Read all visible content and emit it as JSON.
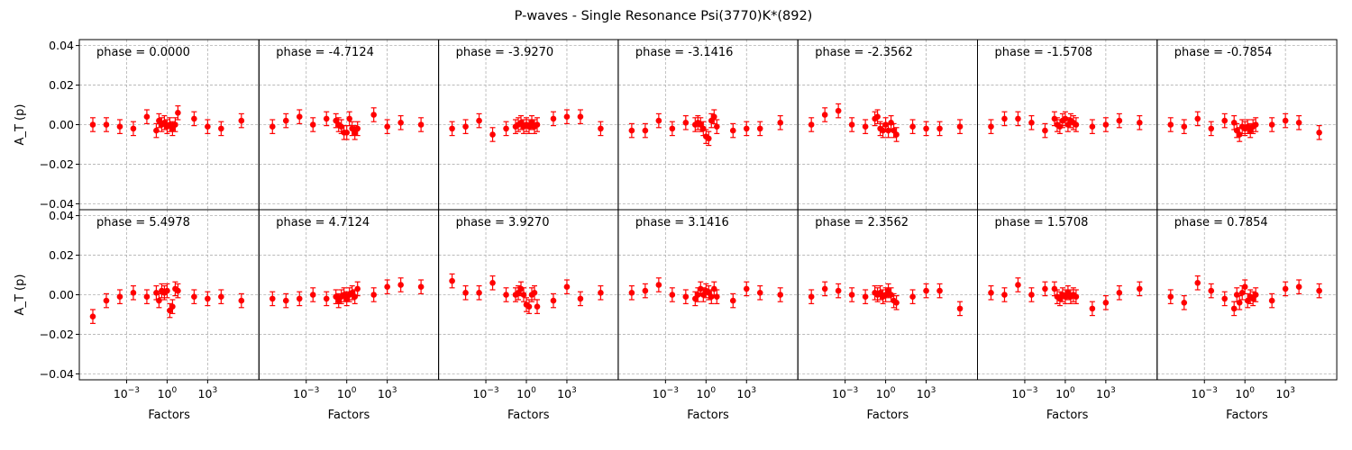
{
  "figure": {
    "title": "P-waves - Single Resonance Psi(3770)K*(892)"
  },
  "colors": {
    "marker": "#ff0000",
    "axis": "#000000",
    "grid": "#b0b0b0"
  },
  "chart_data": {
    "type": "scatter",
    "grid": true,
    "rows": 2,
    "cols": 7,
    "shared_axes": true,
    "xlabel": "Factors",
    "ylabel": "A_T (p)",
    "xscale": "log",
    "xlim_log10": [
      -6.5,
      6.8
    ],
    "ylim": [
      -0.043,
      0.043
    ],
    "yticks": [
      -0.04,
      -0.02,
      0.0,
      0.02,
      0.04
    ],
    "yticklabels": [
      "−0.04",
      "−0.02",
      "0.00",
      "0.02",
      "0.04"
    ],
    "xticks_log10": [
      -3,
      0,
      3
    ],
    "xticklabels": [
      {
        "base": "10",
        "exp": "−3"
      },
      {
        "base": "10",
        "exp": "0"
      },
      {
        "base": "10",
        "exp": "3"
      }
    ],
    "x_log10": [
      -5.5,
      -4.5,
      -3.5,
      -2.5,
      -1.5,
      -0.8,
      -0.6,
      -0.4,
      -0.2,
      0.0,
      0.2,
      0.4,
      0.6,
      0.8,
      2.0,
      3.0,
      4.0,
      5.5
    ],
    "error": 0.0035,
    "panels": [
      {
        "label": "phase = 0.0000",
        "y": [
          0.0,
          0.0,
          -0.001,
          -0.002,
          0.004,
          -0.003,
          0.002,
          0.0,
          0.001,
          -0.001,
          0.0,
          -0.002,
          0.0,
          0.006,
          0.003,
          -0.001,
          -0.002,
          0.002
        ]
      },
      {
        "label": "phase = -4.7124",
        "y": [
          -0.001,
          0.002,
          0.004,
          0.0,
          0.003,
          0.002,
          0.0,
          -0.001,
          -0.004,
          -0.004,
          0.003,
          -0.002,
          -0.004,
          -0.002,
          0.005,
          -0.001,
          0.001,
          0.0
        ]
      },
      {
        "label": "phase = -3.9270",
        "y": [
          -0.002,
          -0.001,
          0.002,
          -0.005,
          -0.002,
          -0.001,
          0.0,
          0.001,
          -0.001,
          0.0,
          -0.001,
          0.001,
          -0.001,
          0.0,
          0.003,
          0.004,
          0.004,
          -0.002
        ]
      },
      {
        "label": "phase = -3.1416",
        "y": [
          -0.003,
          -0.003,
          0.002,
          -0.002,
          0.001,
          0.0,
          0.001,
          0.0,
          -0.002,
          -0.006,
          -0.007,
          0.002,
          0.004,
          -0.001,
          -0.003,
          -0.002,
          -0.002,
          0.001
        ]
      },
      {
        "label": "phase = -2.3562",
        "y": [
          0.0,
          0.005,
          0.007,
          0.0,
          -0.001,
          0.003,
          0.004,
          -0.002,
          -0.003,
          0.0,
          -0.003,
          0.001,
          -0.003,
          -0.005,
          -0.001,
          -0.002,
          -0.002,
          -0.001
        ]
      },
      {
        "label": "phase = -1.5708",
        "y": [
          -0.001,
          0.003,
          0.003,
          0.001,
          -0.003,
          0.003,
          0.0,
          -0.001,
          0.002,
          0.003,
          0.0,
          0.002,
          0.001,
          0.0,
          -0.001,
          0.0,
          0.002,
          0.001
        ]
      },
      {
        "label": "phase = -0.7854",
        "y": [
          0.0,
          -0.001,
          0.003,
          -0.002,
          0.002,
          0.001,
          -0.003,
          -0.005,
          -0.001,
          -0.002,
          -0.001,
          -0.003,
          -0.001,
          0.0,
          0.0,
          0.002,
          0.001,
          -0.004
        ]
      },
      {
        "label": "phase = 5.4978",
        "y": [
          -0.011,
          -0.003,
          -0.001,
          0.001,
          -0.001,
          0.001,
          -0.003,
          0.002,
          0.001,
          0.002,
          -0.008,
          -0.006,
          0.003,
          0.002,
          -0.001,
          -0.002,
          -0.001,
          -0.003
        ]
      },
      {
        "label": "phase = 4.7124",
        "y": [
          -0.002,
          -0.003,
          -0.002,
          0.0,
          -0.002,
          -0.001,
          -0.003,
          -0.001,
          0.0,
          -0.002,
          0.0,
          0.001,
          -0.001,
          0.003,
          0.0,
          0.004,
          0.005,
          0.004
        ]
      },
      {
        "label": "phase = 3.9270",
        "y": [
          0.007,
          0.001,
          0.001,
          0.006,
          0.0,
          0.0,
          0.001,
          0.003,
          0.0,
          -0.005,
          -0.006,
          0.0,
          0.001,
          -0.006,
          -0.003,
          0.004,
          -0.002,
          0.001
        ]
      },
      {
        "label": "phase = 3.1416",
        "y": [
          0.001,
          0.002,
          0.005,
          0.0,
          -0.001,
          -0.002,
          0.0,
          0.003,
          0.0,
          0.002,
          0.001,
          -0.001,
          0.003,
          -0.001,
          -0.003,
          0.003,
          0.001,
          0.0
        ]
      },
      {
        "label": "phase = 2.3562",
        "y": [
          -0.001,
          0.003,
          0.002,
          0.0,
          -0.001,
          0.001,
          0.0,
          0.001,
          -0.001,
          0.0,
          0.002,
          0.0,
          -0.003,
          -0.004,
          -0.001,
          0.002,
          0.002,
          -0.007
        ]
      },
      {
        "label": "phase = 1.5708",
        "y": [
          0.001,
          0.0,
          0.005,
          0.0,
          0.003,
          0.003,
          -0.001,
          -0.002,
          0.0,
          -0.001,
          0.001,
          -0.001,
          0.0,
          -0.001,
          -0.007,
          -0.004,
          0.001,
          0.003
        ]
      },
      {
        "label": "phase = 0.7854",
        "y": [
          -0.001,
          -0.004,
          0.006,
          0.002,
          -0.002,
          -0.007,
          0.0,
          -0.004,
          0.001,
          0.004,
          -0.003,
          -0.001,
          -0.002,
          0.0,
          -0.003,
          0.003,
          0.004,
          0.002
        ]
      }
    ]
  }
}
